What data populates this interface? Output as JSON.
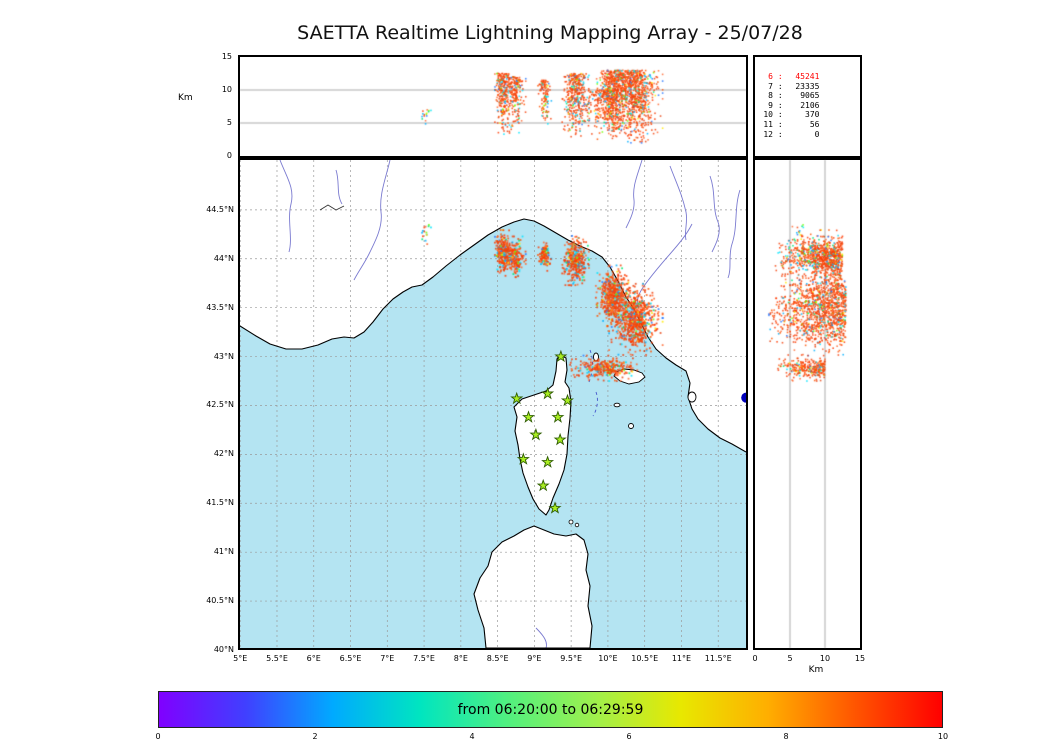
{
  "title": "SAETTA Realtime Lightning Mapping Array - 25/07/28",
  "stats_panel": {
    "highlight_color": "#ff0000",
    "rows": [
      {
        "level": "6",
        "count": "45241",
        "highlight": true
      },
      {
        "level": "7",
        "count": "23335"
      },
      {
        "level": "8",
        "count": "9065"
      },
      {
        "level": "9",
        "count": "2106"
      },
      {
        "level": "10",
        "count": "370"
      },
      {
        "level": "11",
        "count": "56"
      },
      {
        "level": "12",
        "count": "0"
      }
    ]
  },
  "axes": {
    "top_y_ticks": [
      "15",
      "10",
      "5",
      "0"
    ],
    "top_y_values": [
      15,
      10,
      5,
      0
    ],
    "top_y_unit": "Km",
    "map_x_ticks": [
      "5°E",
      "5.5°E",
      "6°E",
      "6.5°E",
      "7°E",
      "7.5°E",
      "8°E",
      "8.5°E",
      "9°E",
      "9.5°E",
      "10°E",
      "10.5°E",
      "11°E",
      "11.5°E"
    ],
    "map_y_ticks": [
      "44.5°N",
      "44°N",
      "43.5°N",
      "43°N",
      "42.5°N",
      "42°N",
      "41.5°N",
      "41°N",
      "40.5°N",
      "40°N"
    ],
    "right_x_ticks": [
      "0",
      "5",
      "10",
      "15"
    ],
    "right_x_values": [
      0,
      5,
      10,
      15
    ],
    "right_x_unit": "Km"
  },
  "colorbar": {
    "label": "from 06:20:00 to 06:29:59",
    "ticks": [
      "0",
      "2",
      "4",
      "6",
      "8",
      "10"
    ],
    "tick_values": [
      0,
      2,
      4,
      6,
      8,
      10
    ],
    "gradient": [
      "#8000ff",
      "#4040ff",
      "#00aaff",
      "#00e5c0",
      "#50f080",
      "#9ef04d",
      "#e8e800",
      "#ffae00",
      "#ff5500",
      "#ff0000"
    ]
  },
  "colors": {
    "sea": "#b4e4f2",
    "land": "#ffffff",
    "coast": "#000000",
    "river": "#7a7ad0",
    "grid": "#9a9a9a",
    "panel_grid": "#888888",
    "station_fill": "#aaee22",
    "station_stroke": "#2e5c00",
    "marker_dot": "#0000bb",
    "warm": [
      "#ff3b00",
      "#ff5500",
      "#f4420c",
      "#ff6a33",
      "#e8420f"
    ],
    "cool": [
      "#00e5ff",
      "#18d8f0",
      "#00b0ff",
      "#2979ff",
      "#00e676",
      "#76ff03",
      "#ffea00"
    ]
  },
  "chart_data": {
    "type": "scatter",
    "description": "Lightning mapping array VHF sources over the Corsica / Ligurian Sea region: plan view map (longitude vs latitude), altitude vs longitude cross-section (top), altitude vs latitude cross-section (right), colored by time within the 10-minute window.",
    "map": {
      "lon_range_deg_e": [
        5.0,
        11.9
      ],
      "lat_range_deg_n": [
        40.0,
        45.0
      ]
    },
    "altitude_range_km": [
      0,
      15
    ],
    "source_counts_by_min_stations": {
      "6": 45241,
      "7": 23335,
      "8": 9065,
      "9": 2106,
      "10": 370,
      "11": 56,
      "12": 0
    },
    "time_window": {
      "from": "06:20:00",
      "to": "06:29:59",
      "colorbar_minutes": [
        0,
        10
      ]
    },
    "clusters": [
      {
        "name": "ligurian-sea-west",
        "lon": 8.58,
        "lat": 44.06,
        "lon_spread": 0.045,
        "lat_spread": 0.09,
        "alt_min": 3.0,
        "alt_max": 12.5,
        "count": 260,
        "warm_ratio": 0.8
      },
      {
        "name": "ligurian-sea-west-2",
        "lon": 8.74,
        "lat": 44.02,
        "lon_spread": 0.055,
        "lat_spread": 0.08,
        "alt_min": 3.0,
        "alt_max": 12.0,
        "count": 200,
        "warm_ratio": 0.8
      },
      {
        "name": "ligurian-small",
        "lon": 9.14,
        "lat": 44.03,
        "lon_spread": 0.035,
        "lat_spread": 0.06,
        "alt_min": 4.0,
        "alt_max": 11.5,
        "count": 120,
        "warm_ratio": 0.75
      },
      {
        "name": "genoa-gulf",
        "lon": 9.56,
        "lat": 43.99,
        "lon_spread": 0.07,
        "lat_spread": 0.1,
        "alt_min": 2.5,
        "alt_max": 12.5,
        "count": 380,
        "warm_ratio": 0.8
      },
      {
        "name": "tuscany-north",
        "lon": 10.07,
        "lat": 43.62,
        "lon_spread": 0.09,
        "lat_spread": 0.12,
        "alt_min": 2.0,
        "alt_max": 13.0,
        "count": 520,
        "warm_ratio": 0.82
      },
      {
        "name": "tuscany-coast",
        "lon": 10.38,
        "lat": 43.38,
        "lon_spread": 0.14,
        "lat_spread": 0.14,
        "alt_min": 1.5,
        "alt_max": 13.0,
        "count": 760,
        "warm_ratio": 0.82
      },
      {
        "name": "elba-band",
        "lon": 9.97,
        "lat": 42.88,
        "lon_spread": 0.2,
        "lat_spread": 0.05,
        "alt_min": 3.0,
        "alt_max": 10.0,
        "count": 300,
        "warm_ratio": 0.85
      },
      {
        "name": "sparse-west",
        "lon": 7.52,
        "lat": 44.28,
        "lon_spread": 0.03,
        "lat_spread": 0.05,
        "alt_min": 4.5,
        "alt_max": 7.0,
        "count": 15,
        "warm_ratio": 0.15
      }
    ],
    "stations_lon_lat": [
      [
        9.36,
        43.0
      ],
      [
        8.76,
        42.57
      ],
      [
        9.18,
        42.62
      ],
      [
        9.45,
        42.55
      ],
      [
        8.92,
        42.38
      ],
      [
        9.32,
        42.38
      ],
      [
        9.02,
        42.2
      ],
      [
        9.35,
        42.15
      ],
      [
        8.85,
        41.95
      ],
      [
        9.18,
        41.92
      ],
      [
        9.12,
        41.68
      ],
      [
        9.28,
        41.45
      ]
    ],
    "marker_dot_lon_lat": [
      11.88,
      42.58
    ]
  }
}
